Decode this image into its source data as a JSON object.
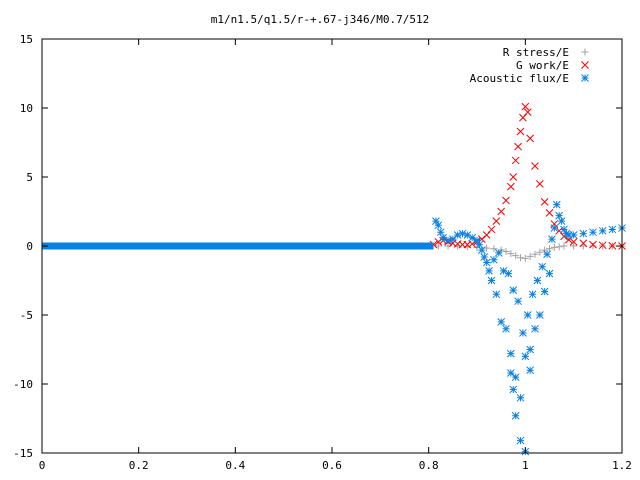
{
  "chart_data": {
    "type": "scatter",
    "title": "m1/n1.5/q1.5/r-+.67-j346/M0.7/512",
    "xlabel": "",
    "ylabel": "",
    "xlim": [
      0,
      1.2
    ],
    "ylim": [
      -15,
      15
    ],
    "x_ticks": [
      "0",
      "0.2",
      "0.4",
      "0.6",
      "0.8",
      "1",
      "1.2"
    ],
    "y_ticks": [
      "15",
      "10",
      "5",
      "0",
      "-5",
      "-10",
      "-15"
    ],
    "grid": false,
    "legend_position": "top-right",
    "series": [
      {
        "name": "R stress/E",
        "marker": "plus",
        "color": "#a0a0a0",
        "points": [
          [
            0.82,
            0
          ],
          [
            0.84,
            0
          ],
          [
            0.86,
            0
          ],
          [
            0.88,
            -0.05
          ],
          [
            0.9,
            -0.1
          ],
          [
            0.92,
            -0.15
          ],
          [
            0.935,
            -0.2
          ],
          [
            0.95,
            -0.3
          ],
          [
            0.96,
            -0.4
          ],
          [
            0.97,
            -0.55
          ],
          [
            0.98,
            -0.7
          ],
          [
            0.99,
            -0.85
          ],
          [
            1.0,
            -0.9
          ],
          [
            1.01,
            -0.75
          ],
          [
            1.02,
            -0.6
          ],
          [
            1.03,
            -0.45
          ],
          [
            1.04,
            -0.3
          ],
          [
            1.05,
            -0.2
          ],
          [
            1.06,
            -0.1
          ],
          [
            1.07,
            -0.05
          ],
          [
            1.08,
            0
          ],
          [
            1.1,
            0
          ],
          [
            1.12,
            0
          ],
          [
            1.14,
            0
          ],
          [
            1.16,
            0
          ],
          [
            1.18,
            0
          ],
          [
            1.2,
            0
          ]
        ]
      },
      {
        "name": "G work/E",
        "marker": "cross",
        "color": "#ff0000",
        "points": [
          [
            0.81,
            0.1
          ],
          [
            0.82,
            0.3
          ],
          [
            0.83,
            0.4
          ],
          [
            0.84,
            0.3
          ],
          [
            0.85,
            0.2
          ],
          [
            0.86,
            0.15
          ],
          [
            0.87,
            0.1
          ],
          [
            0.88,
            0.1
          ],
          [
            0.89,
            0.15
          ],
          [
            0.9,
            0.3
          ],
          [
            0.91,
            0.5
          ],
          [
            0.92,
            0.8
          ],
          [
            0.93,
            1.2
          ],
          [
            0.94,
            1.8
          ],
          [
            0.95,
            2.5
          ],
          [
            0.96,
            3.3
          ],
          [
            0.97,
            4.3
          ],
          [
            0.975,
            5.0
          ],
          [
            0.98,
            6.2
          ],
          [
            0.985,
            7.2
          ],
          [
            0.99,
            8.3
          ],
          [
            0.995,
            9.3
          ],
          [
            1.0,
            10.1
          ],
          [
            1.005,
            9.7
          ],
          [
            1.01,
            7.8
          ],
          [
            1.02,
            5.8
          ],
          [
            1.03,
            4.5
          ],
          [
            1.04,
            3.2
          ],
          [
            1.05,
            2.4
          ],
          [
            1.06,
            1.6
          ],
          [
            1.07,
            1.1
          ],
          [
            1.08,
            0.7
          ],
          [
            1.09,
            0.45
          ],
          [
            1.1,
            0.3
          ],
          [
            1.12,
            0.2
          ],
          [
            1.14,
            0.1
          ],
          [
            1.16,
            0.05
          ],
          [
            1.18,
            0.02
          ],
          [
            1.2,
            0.0
          ]
        ]
      },
      {
        "name": "Acoustic flux/E",
        "marker": "star",
        "color": "#0a80e0",
        "points": [
          [
            0.815,
            1.8
          ],
          [
            0.82,
            1.5
          ],
          [
            0.825,
            1.0
          ],
          [
            0.83,
            0.6
          ],
          [
            0.84,
            0.4
          ],
          [
            0.85,
            0.5
          ],
          [
            0.86,
            0.8
          ],
          [
            0.87,
            0.9
          ],
          [
            0.88,
            0.8
          ],
          [
            0.89,
            0.6
          ],
          [
            0.9,
            0.4
          ],
          [
            0.905,
            0.1
          ],
          [
            0.91,
            -0.3
          ],
          [
            0.915,
            -0.8
          ],
          [
            0.92,
            -1.2
          ],
          [
            0.925,
            -1.8
          ],
          [
            0.93,
            -2.5
          ],
          [
            0.935,
            -1.0
          ],
          [
            0.94,
            -3.5
          ],
          [
            0.945,
            -0.5
          ],
          [
            0.95,
            -5.5
          ],
          [
            0.955,
            -1.8
          ],
          [
            0.96,
            -6.0
          ],
          [
            0.965,
            -2.0
          ],
          [
            0.97,
            -7.8
          ],
          [
            0.975,
            -3.2
          ],
          [
            0.98,
            -9.5
          ],
          [
            0.985,
            -4.0
          ],
          [
            0.99,
            -11.0
          ],
          [
            0.995,
            -6.3
          ],
          [
            1.0,
            -8.0
          ],
          [
            1.005,
            -5.0
          ],
          [
            1.01,
            -7.5
          ],
          [
            1.015,
            -3.5
          ],
          [
            1.02,
            -6.0
          ],
          [
            1.025,
            -2.5
          ],
          [
            1.03,
            -5.0
          ],
          [
            1.035,
            -1.5
          ],
          [
            1.04,
            -3.3
          ],
          [
            1.045,
            -0.6
          ],
          [
            1.05,
            -2.0
          ],
          [
            1.055,
            0.5
          ],
          [
            1.06,
            1.3
          ],
          [
            1.065,
            3.0
          ],
          [
            1.07,
            2.2
          ],
          [
            1.075,
            1.8
          ],
          [
            1.08,
            1.2
          ],
          [
            1.085,
            0.9
          ],
          [
            1.09,
            0.8
          ],
          [
            1.1,
            0.8
          ],
          [
            1.12,
            0.9
          ],
          [
            1.14,
            1.0
          ],
          [
            1.16,
            1.1
          ],
          [
            1.18,
            1.2
          ],
          [
            1.2,
            1.3
          ],
          [
            0.97,
            -9.2
          ],
          [
            0.98,
            -12.3
          ],
          [
            0.99,
            -14.1
          ],
          [
            1.0,
            -14.9
          ],
          [
            0.975,
            -10.4
          ],
          [
            1.01,
            -9.0
          ]
        ],
        "baseline": {
          "x_start": 0.0,
          "x_end": 0.81,
          "y": 0
        }
      }
    ]
  }
}
